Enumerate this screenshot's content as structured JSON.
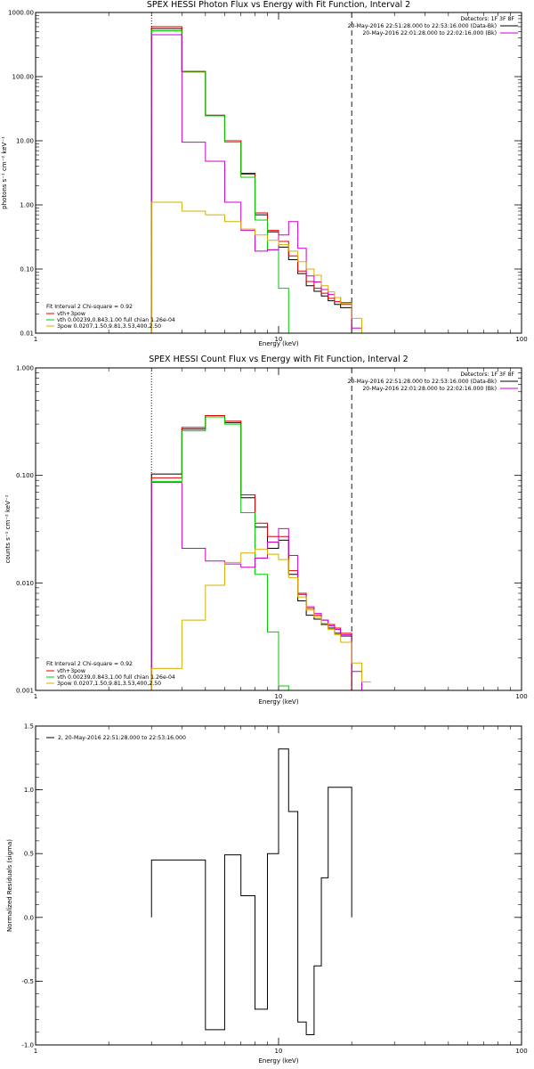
{
  "chart_data": [
    {
      "type": "line",
      "panel": "photon",
      "title": "SPEX HESSI Photon Flux vs Energy with Fit Function, Interval 2",
      "xlabel": "Energy (keV)",
      "ylabel": "photons s⁻¹ cm⁻² keV⁻¹",
      "xscale": "log",
      "yscale": "log",
      "xlim": [
        1,
        100
      ],
      "ylim": [
        0.01,
        1000
      ],
      "xticks": [
        {
          "v": 1,
          "label": "1"
        },
        {
          "v": 10,
          "label": "10"
        },
        {
          "v": 100,
          "label": "100"
        }
      ],
      "yticks": [
        {
          "v": 0.01,
          "label": "0.01"
        },
        {
          "v": 0.1,
          "label": "0.10"
        },
        {
          "v": 1,
          "label": "1.00"
        },
        {
          "v": 10,
          "label": "10.00"
        },
        {
          "v": 100,
          "label": "100.00"
        },
        {
          "v": 1000,
          "label": "1000.00"
        }
      ],
      "vlines": [
        {
          "x": 3.0,
          "style": "dotted"
        },
        {
          "x": 20.0,
          "style": "dashed"
        }
      ],
      "legend_right": {
        "detectors": "Detectors: 1F 3F 8F",
        "entries": [
          {
            "label": "20-May-2016 22:51:28.000 to 22:53:16.000 (Data-Bk)",
            "color": "#000000"
          },
          {
            "label": "20-May-2016 22:01:28.000 to 22:02:16.000 (Bk)",
            "color": "#cc00cc"
          }
        ]
      },
      "legend_left": {
        "header": "Fit Interval 2   Chi-square = 0.92",
        "entries": [
          {
            "label": "vth+3pow",
            "color": "#e00000"
          },
          {
            "label": "vth 0.00239,0.843,1.00  full chian 1.26e-04",
            "color": "#00cc00"
          },
          {
            "label": "3pow 0.0207,1.50,9.81,3.53,400,2.50",
            "color": "#d4b000"
          }
        ]
      },
      "edges": [
        3.0,
        4.0,
        5.0,
        6.0,
        7.0,
        8.0,
        9.0,
        10.0,
        11.0,
        12.0,
        13.0,
        14.0,
        15.0,
        16.0,
        17.0,
        18.0,
        20.0,
        22.0,
        24.0
      ],
      "series": [
        {
          "color": "#000000",
          "values": [
            560,
            120,
            25,
            10,
            3.1,
            0.7,
            0.38,
            0.22,
            0.14,
            0.085,
            0.055,
            0.045,
            0.038,
            0.032,
            0.028,
            0.025,
            null,
            null
          ]
        },
        {
          "color": "#e00000",
          "values": [
            600,
            120,
            25,
            10,
            3.0,
            0.75,
            0.4,
            0.27,
            0.16,
            0.093,
            0.064,
            0.05,
            0.042,
            0.035,
            0.031,
            0.028,
            null,
            null
          ]
        },
        {
          "color": "#00cc00",
          "values": [
            520,
            118,
            24.5,
            9.5,
            2.7,
            0.58,
            0.2,
            0.05,
            0.01,
            null,
            null,
            null,
            null,
            null,
            null,
            null,
            null,
            null
          ]
        },
        {
          "color": "#cc00cc",
          "values": [
            450,
            9.5,
            4.8,
            1.1,
            0.4,
            0.19,
            0.2,
            0.34,
            0.55,
            0.21,
            0.078,
            0.063,
            0.048,
            0.04,
            0.036,
            0.03,
            0.012,
            null
          ]
        },
        {
          "color": "#d4b000",
          "values": [
            1.1,
            0.8,
            0.7,
            0.55,
            0.42,
            0.34,
            0.28,
            0.24,
            0.19,
            0.13,
            0.1,
            0.08,
            0.055,
            0.044,
            0.036,
            0.029,
            0.017,
            0.01
          ]
        }
      ]
    },
    {
      "type": "line",
      "panel": "count",
      "title": "SPEX HESSI Count Flux vs Energy with Fit Function, Interval 2",
      "xlabel": "Energy (keV)",
      "ylabel": "counts s⁻¹ cm⁻² keV⁻¹",
      "xscale": "log",
      "yscale": "log",
      "xlim": [
        1,
        100
      ],
      "ylim": [
        0.001,
        1
      ],
      "xticks": [
        {
          "v": 1,
          "label": "1"
        },
        {
          "v": 10,
          "label": "10"
        },
        {
          "v": 100,
          "label": "100"
        }
      ],
      "yticks": [
        {
          "v": 0.001,
          "label": "0.001"
        },
        {
          "v": 0.01,
          "label": "0.010"
        },
        {
          "v": 0.1,
          "label": "0.100"
        },
        {
          "v": 1,
          "label": "1.000"
        }
      ],
      "vlines": [
        {
          "x": 3.0,
          "style": "dotted"
        },
        {
          "x": 20.0,
          "style": "dashed"
        }
      ],
      "legend_right": {
        "detectors": "Detectors: 1F 3F 8F",
        "entries": [
          {
            "label": "20-May-2016 22:51:28.000 to 22:53:16.000 (Data-Bk)",
            "color": "#000000"
          },
          {
            "label": "20-May-2016 22:01:28.000 to 22:02:16.000 (Bk)",
            "color": "#cc00cc"
          }
        ]
      },
      "legend_left": {
        "header": "Fit Interval 2   Chi-square = 0.92",
        "entries": [
          {
            "label": "vth+3pow",
            "color": "#e00000"
          },
          {
            "label": "vth 0.00239,0.843,1.00  full chian 1.26e-04",
            "color": "#00cc00"
          },
          {
            "label": "3pow 0.0207,1.50,9.81,3.53,400,2.50",
            "color": "#d4b000"
          }
        ]
      },
      "edges": [
        3.0,
        4.0,
        5.0,
        6.0,
        7.0,
        8.0,
        9.0,
        10.0,
        11.0,
        12.0,
        13.0,
        14.0,
        15.0,
        16.0,
        17.0,
        18.0,
        20.0,
        22.0,
        24.0
      ],
      "series": [
        {
          "color": "#000000",
          "values": [
            0.103,
            0.27,
            0.36,
            0.31,
            0.062,
            0.033,
            0.021,
            0.025,
            0.012,
            0.0068,
            0.005,
            0.0046,
            0.0041,
            0.0038,
            0.0034,
            0.0032,
            null,
            null
          ]
        },
        {
          "color": "#e00000",
          "values": [
            0.095,
            0.28,
            0.36,
            0.32,
            0.066,
            0.036,
            0.027,
            0.027,
            0.013,
            0.008,
            0.0058,
            0.005,
            0.0045,
            0.0041,
            0.0038,
            0.0034,
            null,
            null
          ]
        },
        {
          "color": "#00cc00",
          "values": [
            0.088,
            0.26,
            0.35,
            0.3,
            0.045,
            0.012,
            0.0035,
            0.0011,
            null,
            null,
            null,
            null,
            null,
            null,
            null,
            null,
            null,
            null
          ]
        },
        {
          "color": "#cc00cc",
          "values": [
            0.086,
            0.021,
            0.016,
            0.015,
            0.014,
            0.017,
            0.024,
            0.032,
            0.018,
            0.0078,
            0.006,
            0.0052,
            0.0045,
            0.004,
            0.0037,
            0.0033,
            0.0015,
            null
          ]
        },
        {
          "color": "#d4b000",
          "values": [
            0.0016,
            0.0045,
            0.0095,
            0.0155,
            0.019,
            0.0205,
            0.0185,
            0.0165,
            0.0112,
            0.0074,
            0.0056,
            0.0048,
            0.0042,
            0.0037,
            0.0033,
            0.0028,
            0.0018,
            0.0012
          ]
        }
      ]
    },
    {
      "type": "line",
      "panel": "residuals",
      "title": "",
      "xlabel": "Energy (keV)",
      "ylabel": "Normalized Residuals (sigma)",
      "xscale": "log",
      "yscale": "linear",
      "xlim": [
        1,
        100
      ],
      "ylim": [
        -1.0,
        1.5
      ],
      "xticks": [
        {
          "v": 1,
          "label": "1"
        },
        {
          "v": 10,
          "label": "10"
        },
        {
          "v": 100,
          "label": "100"
        }
      ],
      "yticks": [
        {
          "v": -1.0,
          "label": "-1.0"
        },
        {
          "v": -0.5,
          "label": "-0.5"
        },
        {
          "v": 0.0,
          "label": "0.0"
        },
        {
          "v": 0.5,
          "label": "0.5"
        },
        {
          "v": 1.0,
          "label": "1.0"
        },
        {
          "v": 1.5,
          "label": "1.5"
        }
      ],
      "legend_left": {
        "header": "",
        "entries": [
          {
            "label": "2, 20-May-2016 22:51:28.000 to 22:53:16.000",
            "color": "#000000"
          }
        ]
      },
      "edges": [
        3.0,
        4.0,
        5.0,
        6.0,
        7.0,
        8.0,
        9.0,
        10.0,
        11.0,
        12.0,
        13.0,
        14.0,
        15.0,
        16.0,
        17.0,
        18.0,
        20.0
      ],
      "series": [
        {
          "color": "#000000",
          "values": [
            0.45,
            0.45,
            -0.88,
            0.49,
            0.17,
            -0.72,
            0.5,
            1.32,
            0.83,
            -0.82,
            -0.92,
            -0.38,
            0.31,
            1.02,
            1.02,
            1.02
          ]
        }
      ]
    }
  ]
}
